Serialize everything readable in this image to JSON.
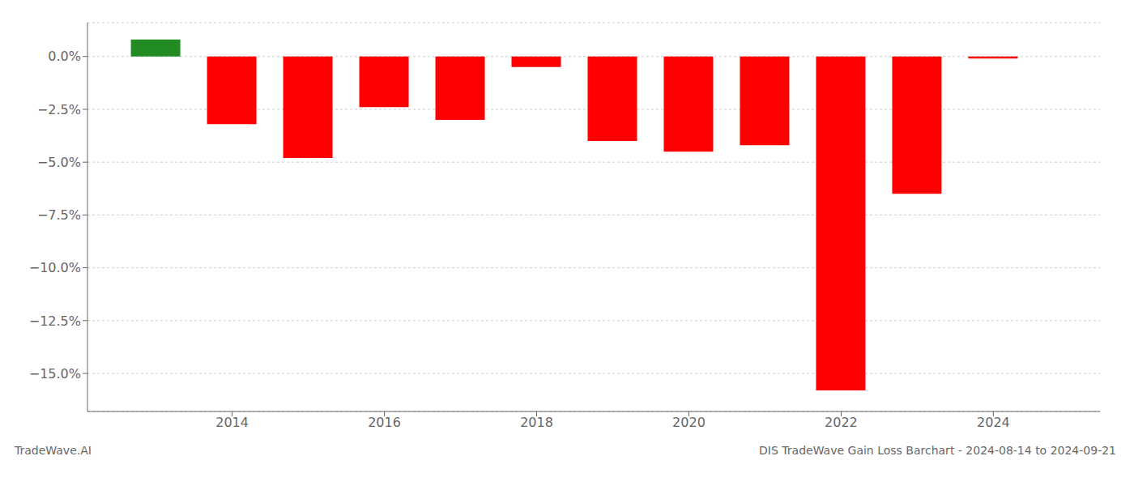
{
  "chart_data": {
    "type": "bar",
    "title": "DIS TradeWave Gain Loss Barchart - 2024-08-14 to 2024-09-21",
    "annotations": [
      "TradeWave.AI"
    ],
    "x": [
      2013,
      2014,
      2015,
      2016,
      2017,
      2018,
      2019,
      2020,
      2021,
      2022,
      2023,
      2024
    ],
    "values": [
      0.008,
      -0.032,
      -0.048,
      -0.024,
      -0.03,
      -0.005,
      -0.04,
      -0.045,
      -0.042,
      -0.158,
      -0.065,
      -0.001
    ],
    "colors": [
      "#228B22",
      "#FF0000",
      "#FF0000",
      "#FF0000",
      "#FF0000",
      "#FF0000",
      "#FF0000",
      "#FF0000",
      "#FF0000",
      "#FF0000",
      "#FF0000",
      "#FF0000"
    ],
    "xlim": [
      2012.1,
      2025.4
    ],
    "xticks": [
      2014,
      2016,
      2018,
      2020,
      2022,
      2024
    ],
    "ylim": [
      -0.168,
      0.016
    ],
    "yticks": [
      {
        "value": 0.0,
        "label": "0.0%"
      },
      {
        "value": -0.025,
        "label": "−2.5%"
      },
      {
        "value": -0.05,
        "label": "−5.0%"
      },
      {
        "value": -0.075,
        "label": "−7.5%"
      },
      {
        "value": -0.1,
        "label": "−10.0%"
      },
      {
        "value": -0.125,
        "label": "−12.5%"
      },
      {
        "value": -0.15,
        "label": "−15.0%"
      }
    ],
    "grid": "y"
  }
}
